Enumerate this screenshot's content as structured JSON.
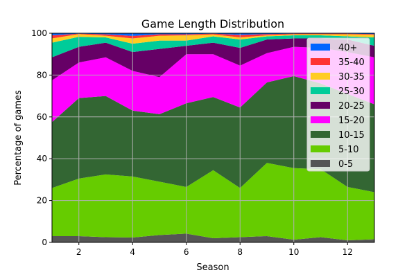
{
  "chart_data": {
    "type": "area",
    "stacked": true,
    "title": "Game Length Distribution",
    "xlabel": "Season",
    "ylabel": "Percentage of games",
    "x": [
      1,
      2,
      3,
      4,
      5,
      6,
      7,
      8,
      9,
      10,
      11,
      12,
      13
    ],
    "xlim": [
      1,
      13
    ],
    "ylim": [
      0,
      100
    ],
    "xticks": [
      2,
      4,
      6,
      8,
      10,
      12
    ],
    "yticks": [
      0,
      20,
      40,
      60,
      80,
      100
    ],
    "grid": true,
    "legend_placement": "upper right",
    "series": [
      {
        "name": "0-5",
        "color": "#555555",
        "values": [
          3,
          3,
          2.5,
          2.3,
          3.5,
          4.2,
          2,
          2.5,
          3,
          1.3,
          2.5,
          1,
          1.5
        ]
      },
      {
        "name": "5-10",
        "color": "#66cc00",
        "values": [
          23,
          27.5,
          30,
          29.2,
          25.5,
          22.3,
          32.5,
          23.5,
          35,
          34.2,
          32.5,
          25.5,
          22.5
        ]
      },
      {
        "name": "10-15",
        "color": "#336633",
        "values": [
          31.5,
          38.5,
          37.5,
          31.5,
          32.3,
          40,
          35,
          38.5,
          38.5,
          44,
          41,
          44.5,
          42
        ]
      },
      {
        "name": "15-20",
        "color": "#ff00ff",
        "values": [
          20,
          17,
          18.5,
          19,
          17.7,
          23.5,
          20.5,
          20,
          14,
          14,
          17,
          20,
          22.5
        ]
      },
      {
        "name": "20-25",
        "color": "#660066",
        "values": [
          11,
          7.5,
          7,
          9,
          13.5,
          4,
          5.5,
          8.5,
          6.5,
          4,
          4.5,
          6,
          5.5
        ]
      },
      {
        "name": "25-30",
        "color": "#00cc99",
        "values": [
          7,
          4.8,
          2.5,
          4,
          4,
          2.5,
          3,
          4,
          1.5,
          1.5,
          1.5,
          1.5,
          4
        ]
      },
      {
        "name": "30-35",
        "color": "#ffcc22",
        "values": [
          2,
          1.3,
          0.8,
          2.5,
          2.3,
          2.5,
          0.9,
          1,
          0.5,
          0.5,
          0.5,
          1,
          1.3
        ]
      },
      {
        "name": "35-40",
        "color": "#ff3333",
        "values": [
          1.5,
          0.2,
          0.7,
          1.2,
          0.7,
          0.5,
          0.4,
          1.2,
          0.6,
          0.3,
          0.3,
          0.3,
          0.3
        ]
      },
      {
        "name": "40+",
        "color": "#0066ff",
        "values": [
          1,
          0.2,
          0.5,
          1.3,
          0.5,
          0.5,
          0.2,
          0.8,
          0.4,
          0.2,
          0.2,
          0.2,
          0.4
        ]
      }
    ]
  }
}
